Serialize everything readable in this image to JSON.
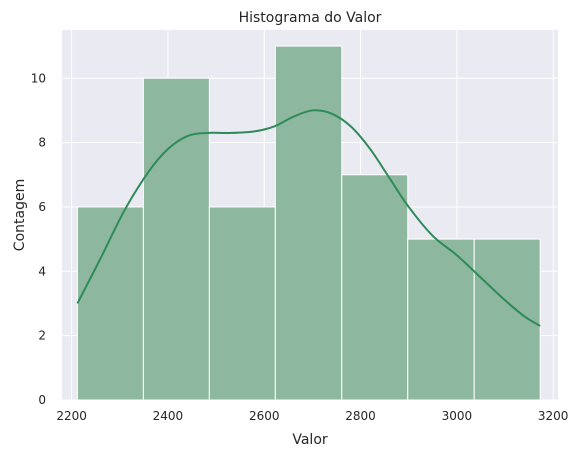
{
  "chart_data": {
    "type": "histogram",
    "title": "Histograma do Valor",
    "xlabel": "Valor",
    "ylabel": "Contagem",
    "xlim": [
      2180,
      3210
    ],
    "ylim": [
      0,
      11.5
    ],
    "x_ticks": [
      2200,
      2400,
      2600,
      2800,
      3000,
      3200
    ],
    "y_ticks": [
      0,
      2,
      4,
      6,
      8,
      10
    ],
    "grid": true,
    "bins": [
      {
        "start": 2212,
        "end": 2349,
        "count": 6
      },
      {
        "start": 2349,
        "end": 2486,
        "count": 10
      },
      {
        "start": 2486,
        "end": 2623,
        "count": 6
      },
      {
        "start": 2623,
        "end": 2761,
        "count": 11
      },
      {
        "start": 2761,
        "end": 2898,
        "count": 7
      },
      {
        "start": 2898,
        "end": 3036,
        "count": 5
      },
      {
        "start": 3036,
        "end": 3173,
        "count": 5
      }
    ],
    "kde": {
      "x": [
        2212,
        2260,
        2310,
        2360,
        2400,
        2440,
        2480,
        2530,
        2580,
        2620,
        2660,
        2700,
        2740,
        2780,
        2820,
        2860,
        2900,
        2950,
        3000,
        3050,
        3100,
        3140,
        3173
      ],
      "y": [
        3.0,
        4.4,
        5.9,
        7.1,
        7.8,
        8.2,
        8.3,
        8.3,
        8.35,
        8.5,
        8.8,
        9.0,
        8.9,
        8.5,
        7.8,
        6.9,
        6.0,
        5.1,
        4.5,
        3.8,
        3.1,
        2.6,
        2.3
      ]
    },
    "colors": {
      "bar_fill": "#8db89f",
      "bar_edge": "#ffffff",
      "kde_line": "#2e8b57",
      "plot_bg": "#eaeaf2",
      "grid": "#ffffff"
    }
  }
}
